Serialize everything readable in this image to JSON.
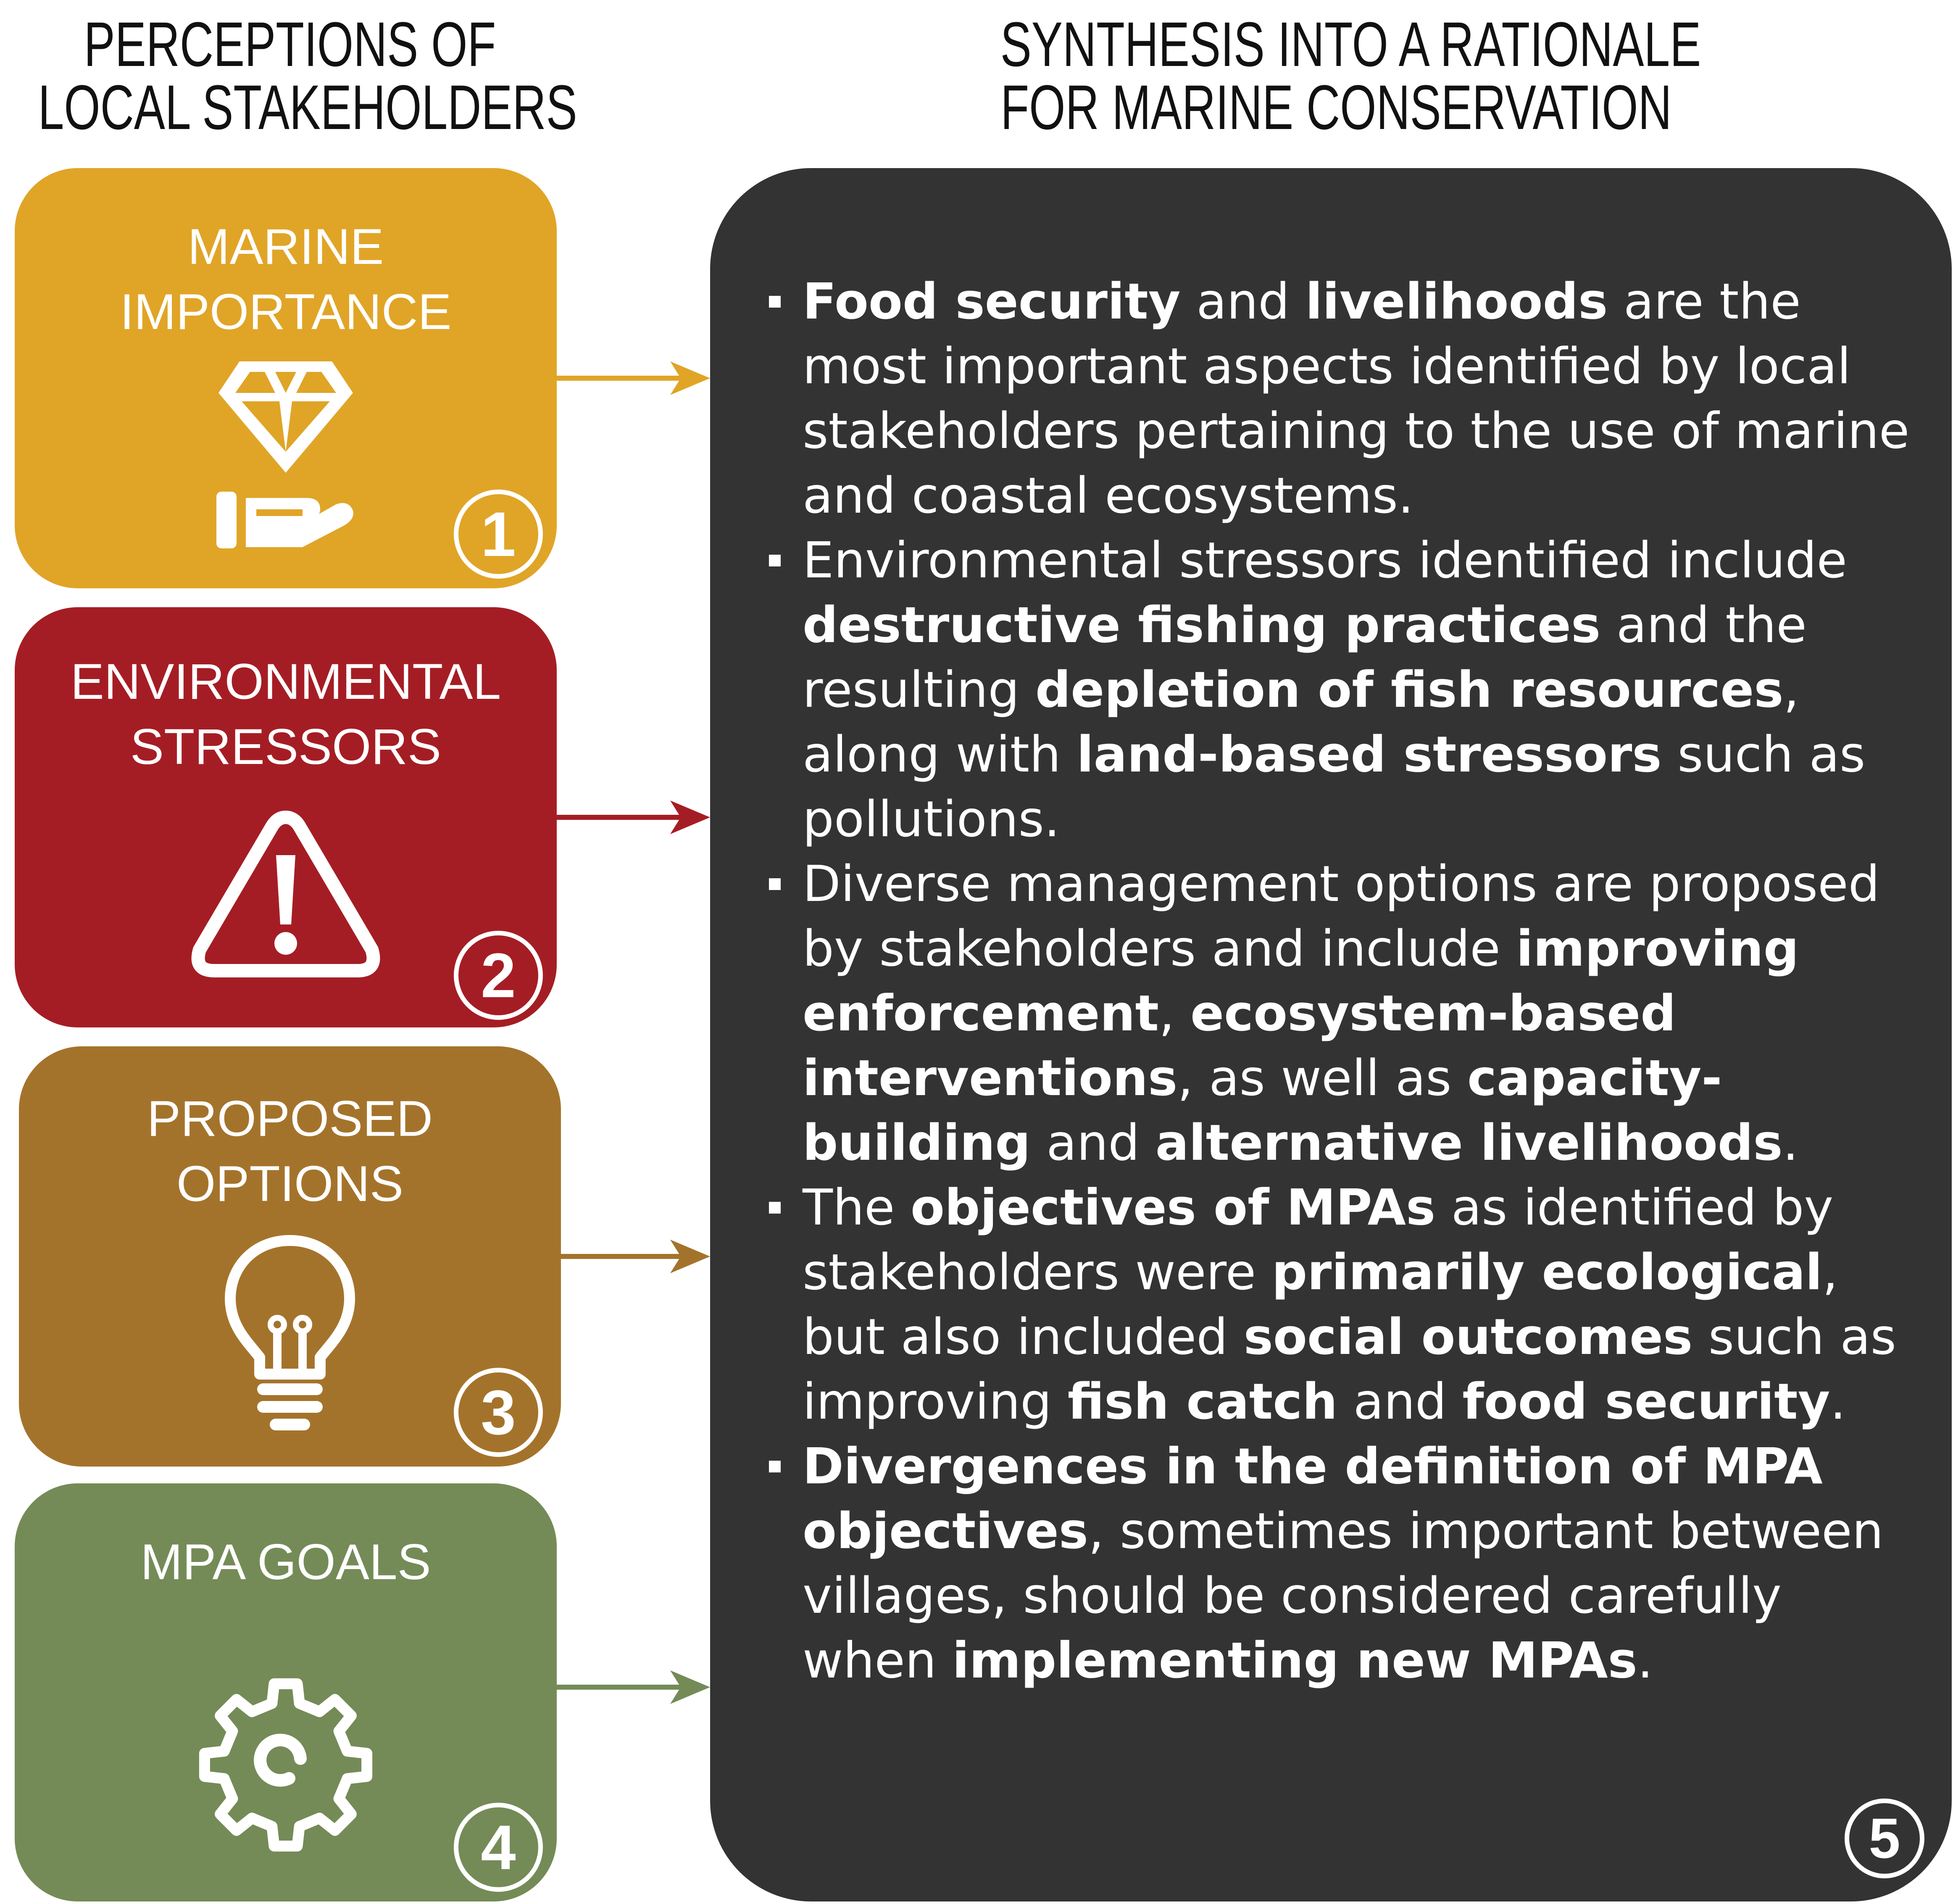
{
  "headings": {
    "left": [
      "PERCEPTIONS OF",
      "LOCAL STAKEHOLDERS"
    ],
    "right": [
      "SYNTHESIS INTO A RATIONALE",
      "FOR MARINE CONSERVATION"
    ]
  },
  "colors": {
    "marine_importance": "#E0A527",
    "environmental_stressors": "#A51D24",
    "proposed_options": "#A4732B",
    "mpa_goals": "#748B57",
    "synthesis_panel": "#333333",
    "text_light": "#FFFFFF"
  },
  "boxes": [
    {
      "title": [
        "MARINE",
        "IMPORTANCE"
      ],
      "number": "1",
      "icon": "diamond-in-hand-icon"
    },
    {
      "title": [
        "ENVIRONMENTAL",
        "STRESSORS"
      ],
      "number": "2",
      "icon": "warning-triangle-icon"
    },
    {
      "title": [
        "PROPOSED",
        "OPTIONS"
      ],
      "number": "3",
      "icon": "lightbulb-icon"
    },
    {
      "title": [
        "MPA GOALS"
      ],
      "number": "4",
      "icon": "gear-icon"
    }
  ],
  "synthesis": {
    "number": "5",
    "bullets": [
      [
        {
          "t": "Food security",
          "b": true
        },
        {
          "t": " and ",
          "b": false
        },
        {
          "t": "livelihoods",
          "b": true
        },
        {
          "t": " are the most important aspects identified by local stakeholders pertaining to the use of marine and coastal ecosystems.",
          "b": false
        }
      ],
      [
        {
          "t": "Environmental stressors identified include ",
          "b": false
        },
        {
          "t": "destructive fishing practices",
          "b": true
        },
        {
          "t": " and the resulting ",
          "b": false
        },
        {
          "t": "depletion of fish resources",
          "b": true
        },
        {
          "t": ", along with ",
          "b": false
        },
        {
          "t": "land-based stressors",
          "b": true
        },
        {
          "t": " such as pollutions.",
          "b": false
        }
      ],
      [
        {
          "t": "Diverse management options are proposed by stakeholders and include ",
          "b": false
        },
        {
          "t": "improving enforcement",
          "b": true
        },
        {
          "t": ", ",
          "b": false
        },
        {
          "t": "ecosystem-based interventions",
          "b": true
        },
        {
          "t": ", as well as ",
          "b": false
        },
        {
          "t": "capacity-building",
          "b": true
        },
        {
          "t": " and ",
          "b": false
        },
        {
          "t": "alternative livelihoods",
          "b": true
        },
        {
          "t": ".",
          "b": false
        }
      ],
      [
        {
          "t": "The ",
          "b": false
        },
        {
          "t": "objectives of MPAs",
          "b": true
        },
        {
          "t": " as identified by stakeholders were ",
          "b": false
        },
        {
          "t": "primarily ecological",
          "b": true
        },
        {
          "t": ", but also included ",
          "b": false
        },
        {
          "t": "social outcomes",
          "b": true
        },
        {
          "t": " such as improving ",
          "b": false
        },
        {
          "t": "fish catch",
          "b": true
        },
        {
          "t": " and ",
          "b": false
        },
        {
          "t": "food security",
          "b": true
        },
        {
          "t": ".",
          "b": false
        }
      ],
      [
        {
          "t": "Divergences in the definition of MPA objectives",
          "b": true
        },
        {
          "t": ", sometimes important between villages, should be considered carefully when ",
          "b": false
        },
        {
          "t": "implementing new MPAs",
          "b": true
        },
        {
          "t": ".",
          "b": false
        }
      ]
    ]
  }
}
